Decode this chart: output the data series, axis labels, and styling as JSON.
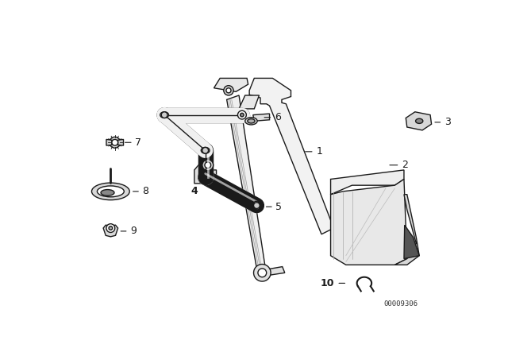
{
  "background_color": "#ffffff",
  "figure_width": 6.4,
  "figure_height": 4.48,
  "dpi": 100,
  "diagram_id": "00009306",
  "line_color": "#1a1a1a",
  "line_width": 1.0
}
